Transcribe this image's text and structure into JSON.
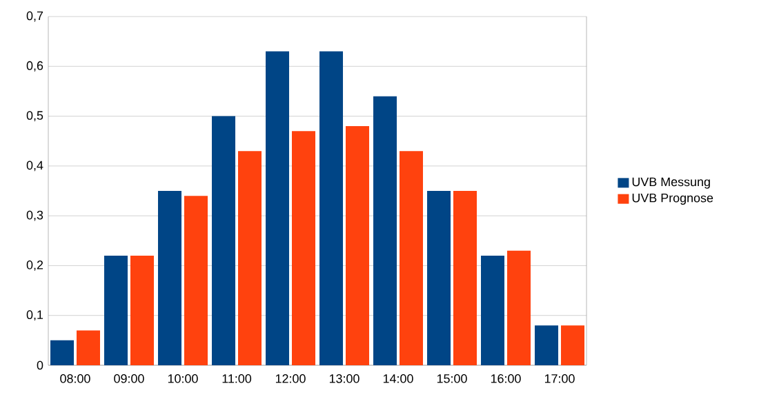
{
  "chart_data": {
    "type": "bar",
    "categories": [
      "08:00",
      "09:00",
      "10:00",
      "11:00",
      "12:00",
      "13:00",
      "14:00",
      "15:00",
      "16:00",
      "17:00"
    ],
    "series": [
      {
        "name": "UVB Messung",
        "color": "#004586",
        "values": [
          0.05,
          0.22,
          0.35,
          0.5,
          0.63,
          0.63,
          0.54,
          0.35,
          0.22,
          0.08
        ]
      },
      {
        "name": "UVB Prognose",
        "color": "#ff420e",
        "values": [
          0.07,
          0.22,
          0.34,
          0.43,
          0.47,
          0.48,
          0.43,
          0.35,
          0.23,
          0.08
        ]
      }
    ],
    "ylim": [
      0,
      0.7
    ],
    "yticks": [
      {
        "value": 0,
        "label": "0"
      },
      {
        "value": 0.1,
        "label": "0,1"
      },
      {
        "value": 0.2,
        "label": "0,2"
      },
      {
        "value": 0.3,
        "label": "0,3"
      },
      {
        "value": 0.4,
        "label": "0,4"
      },
      {
        "value": 0.5,
        "label": "0,5"
      },
      {
        "value": 0.6,
        "label": "0,6"
      },
      {
        "value": 0.7,
        "label": "0,7"
      }
    ],
    "grid": "y",
    "legend": "right"
  }
}
